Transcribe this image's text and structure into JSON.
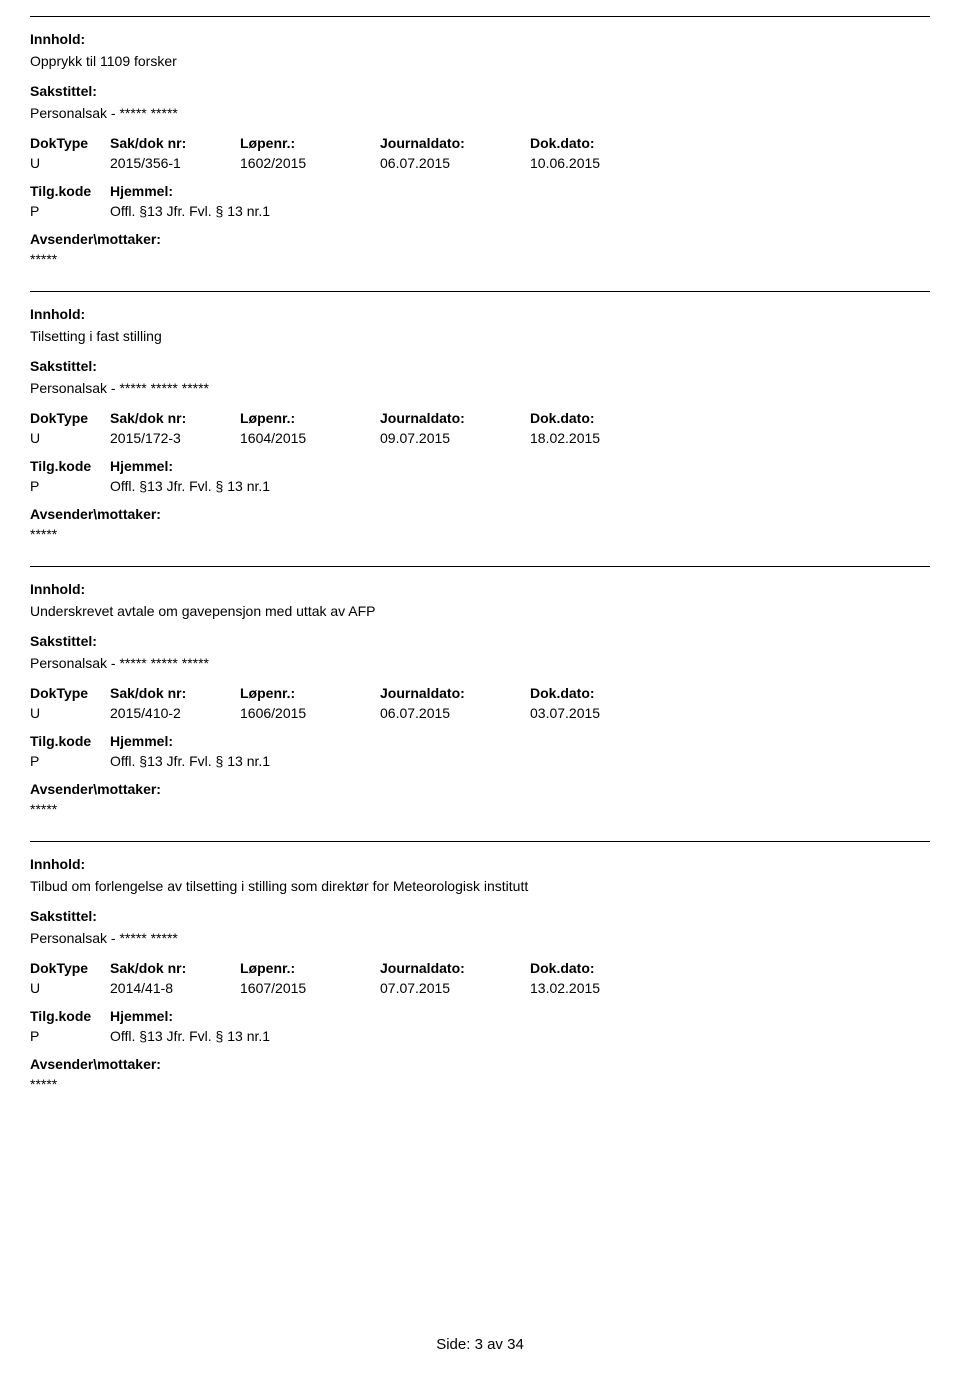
{
  "labels": {
    "innhold": "Innhold:",
    "sakstittel": "Sakstittel:",
    "doktype": "DokType",
    "sakdok": "Sak/dok nr:",
    "lopenr": "Løpenr.:",
    "journaldato": "Journaldato:",
    "dokdato": "Dok.dato:",
    "tilgkode": "Tilg.kode",
    "hjemmel": "Hjemmel:",
    "avsender": "Avsender\\mottaker:"
  },
  "entries": [
    {
      "innhold": "Opprykk til 1109 forsker",
      "sakstittel": "Personalsak - ***** *****",
      "doktype": "U",
      "sakdok": "2015/356-1",
      "lopenr": "1602/2015",
      "journaldato": "06.07.2015",
      "dokdato": "10.06.2015",
      "tilgkode": "P",
      "hjemmel": "Offl. §13 Jfr. Fvl. § 13 nr.1",
      "avsender": "*****"
    },
    {
      "innhold": "Tilsetting i fast stilling",
      "sakstittel": "Personalsak - ***** ***** *****",
      "doktype": "U",
      "sakdok": "2015/172-3",
      "lopenr": "1604/2015",
      "journaldato": "09.07.2015",
      "dokdato": "18.02.2015",
      "tilgkode": "P",
      "hjemmel": "Offl. §13 Jfr. Fvl. § 13 nr.1",
      "avsender": "*****"
    },
    {
      "innhold": "Underskrevet avtale om gavepensjon med uttak av AFP",
      "sakstittel": "Personalsak - ***** ***** *****",
      "doktype": "U",
      "sakdok": "2015/410-2",
      "lopenr": "1606/2015",
      "journaldato": "06.07.2015",
      "dokdato": "03.07.2015",
      "tilgkode": "P",
      "hjemmel": "Offl. §13 Jfr. Fvl. § 13 nr.1",
      "avsender": "*****"
    },
    {
      "innhold": "Tilbud om forlengelse av tilsetting i stilling som direktør for Meteorologisk institutt",
      "sakstittel": "Personalsak - ***** *****",
      "doktype": "U",
      "sakdok": "2014/41-8",
      "lopenr": "1607/2015",
      "journaldato": "07.07.2015",
      "dokdato": "13.02.2015",
      "tilgkode": "P",
      "hjemmel": "Offl. §13 Jfr. Fvl. § 13 nr.1",
      "avsender": "*****"
    }
  ],
  "footer": "Side: 3 av 34"
}
